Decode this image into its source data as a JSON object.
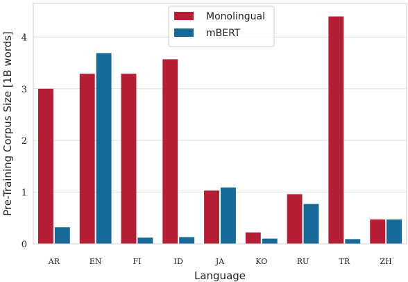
{
  "chart_data": {
    "type": "bar",
    "categories": [
      "AR",
      "EN",
      "FI",
      "ID",
      "JA",
      "KO",
      "RU",
      "TR",
      "ZH"
    ],
    "series": [
      {
        "name": "Monolingual",
        "color": "#b41f35",
        "values": [
          3.0,
          3.29,
          3.29,
          3.57,
          1.03,
          0.22,
          0.96,
          4.4,
          0.47
        ]
      },
      {
        "name": "mBERT",
        "color": "#176a97",
        "values": [
          0.32,
          3.69,
          0.12,
          0.13,
          1.09,
          0.1,
          0.77,
          0.09,
          0.47
        ]
      }
    ],
    "xlabel": "Language",
    "ylabel": "Pre-Training Corpus Size [1B words]",
    "yticks": [
      0,
      1,
      2,
      3,
      4
    ],
    "ylim": [
      0,
      4.65
    ],
    "grid": "horizontal",
    "legend": "top-center"
  }
}
